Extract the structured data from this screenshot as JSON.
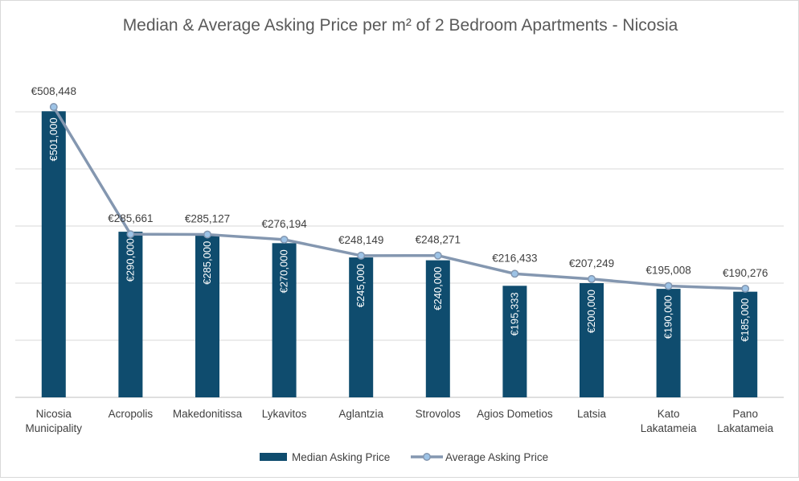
{
  "chart_data": {
    "type": "bar",
    "title": "Median & Average Asking Price per m² of 2 Bedroom Apartments - Nicosia",
    "categories": [
      [
        "Nicosia",
        "Municipality"
      ],
      [
        "Acropolis"
      ],
      [
        "Makedonitissa"
      ],
      [
        "Lykavitos"
      ],
      [
        "Aglantzia"
      ],
      [
        "Strovolos"
      ],
      [
        "Agios Dometios"
      ],
      [
        "Latsia"
      ],
      [
        "Kato",
        "Lakatameia"
      ],
      [
        "Pano",
        "Lakatameia"
      ]
    ],
    "series": [
      {
        "name": "Median Asking Price",
        "type": "bar",
        "color": "#0f4c6e",
        "values": [
          501000,
          290000,
          285000,
          270000,
          245000,
          240000,
          195333,
          200000,
          190000,
          185000
        ],
        "labels": [
          "€501,000",
          "€290,000",
          "€285,000",
          "€270,000",
          "€245,000",
          "€240,000",
          "€195,333",
          "€200,000",
          "€190,000",
          "€185,000"
        ]
      },
      {
        "name": "Average Asking Price",
        "type": "line",
        "color": "#8497b0",
        "marker_color": "#9dc3e6",
        "values": [
          508448,
          285661,
          285127,
          276194,
          248149,
          248271,
          216433,
          207249,
          195008,
          190276
        ],
        "labels": [
          "€508,448",
          "€285,661",
          "€285,127",
          "€276,194",
          "€248,149",
          "€248,271",
          "€216,433",
          "€207,249",
          "€195,008",
          "€190,276"
        ]
      }
    ],
    "ylim": [
      0,
      500000
    ],
    "ytick_step": 100000,
    "grid": true,
    "gridline_color": "#d9d9d9",
    "legend": "bottom"
  }
}
